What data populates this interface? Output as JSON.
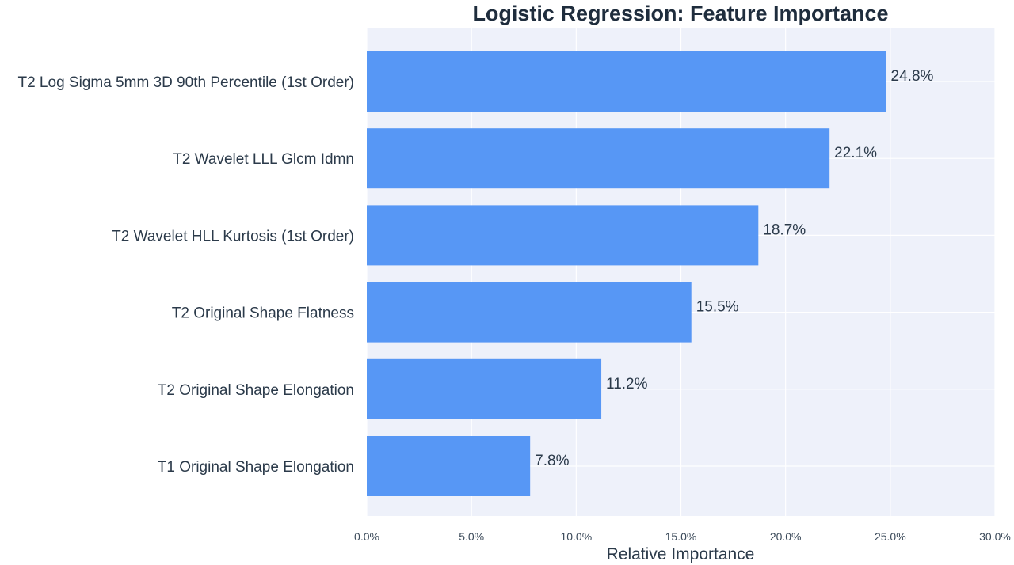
{
  "chart_data": {
    "type": "bar",
    "orientation": "horizontal",
    "title": "Logistic Regression: Feature Importance",
    "xlabel": "Relative Importance",
    "ylabel": "",
    "xlim": [
      0,
      30
    ],
    "x_ticks": [
      0,
      5,
      10,
      15,
      20,
      25,
      30
    ],
    "x_tick_labels": [
      "0.0%",
      "5.0%",
      "10.0%",
      "15.0%",
      "20.0%",
      "25.0%",
      "30.0%"
    ],
    "categories": [
      "T2 Log Sigma 5mm 3D 90th Percentile (1st Order)",
      "T2 Wavelet LLL Glcm Idmn",
      "T2 Wavelet HLL Kurtosis (1st Order)",
      "T2 Original Shape Flatness",
      "T2 Original Shape Elongation",
      "T1 Original Shape Elongation"
    ],
    "values": [
      24.8,
      22.1,
      18.7,
      15.5,
      11.2,
      7.8
    ],
    "value_labels": [
      "24.8%",
      "22.1%",
      "18.7%",
      "15.5%",
      "11.2%",
      "7.8%"
    ],
    "grid": true,
    "colors": {
      "bar": "#5797f5",
      "plot_background": "#eef1fa",
      "grid": "#ffffff"
    }
  }
}
